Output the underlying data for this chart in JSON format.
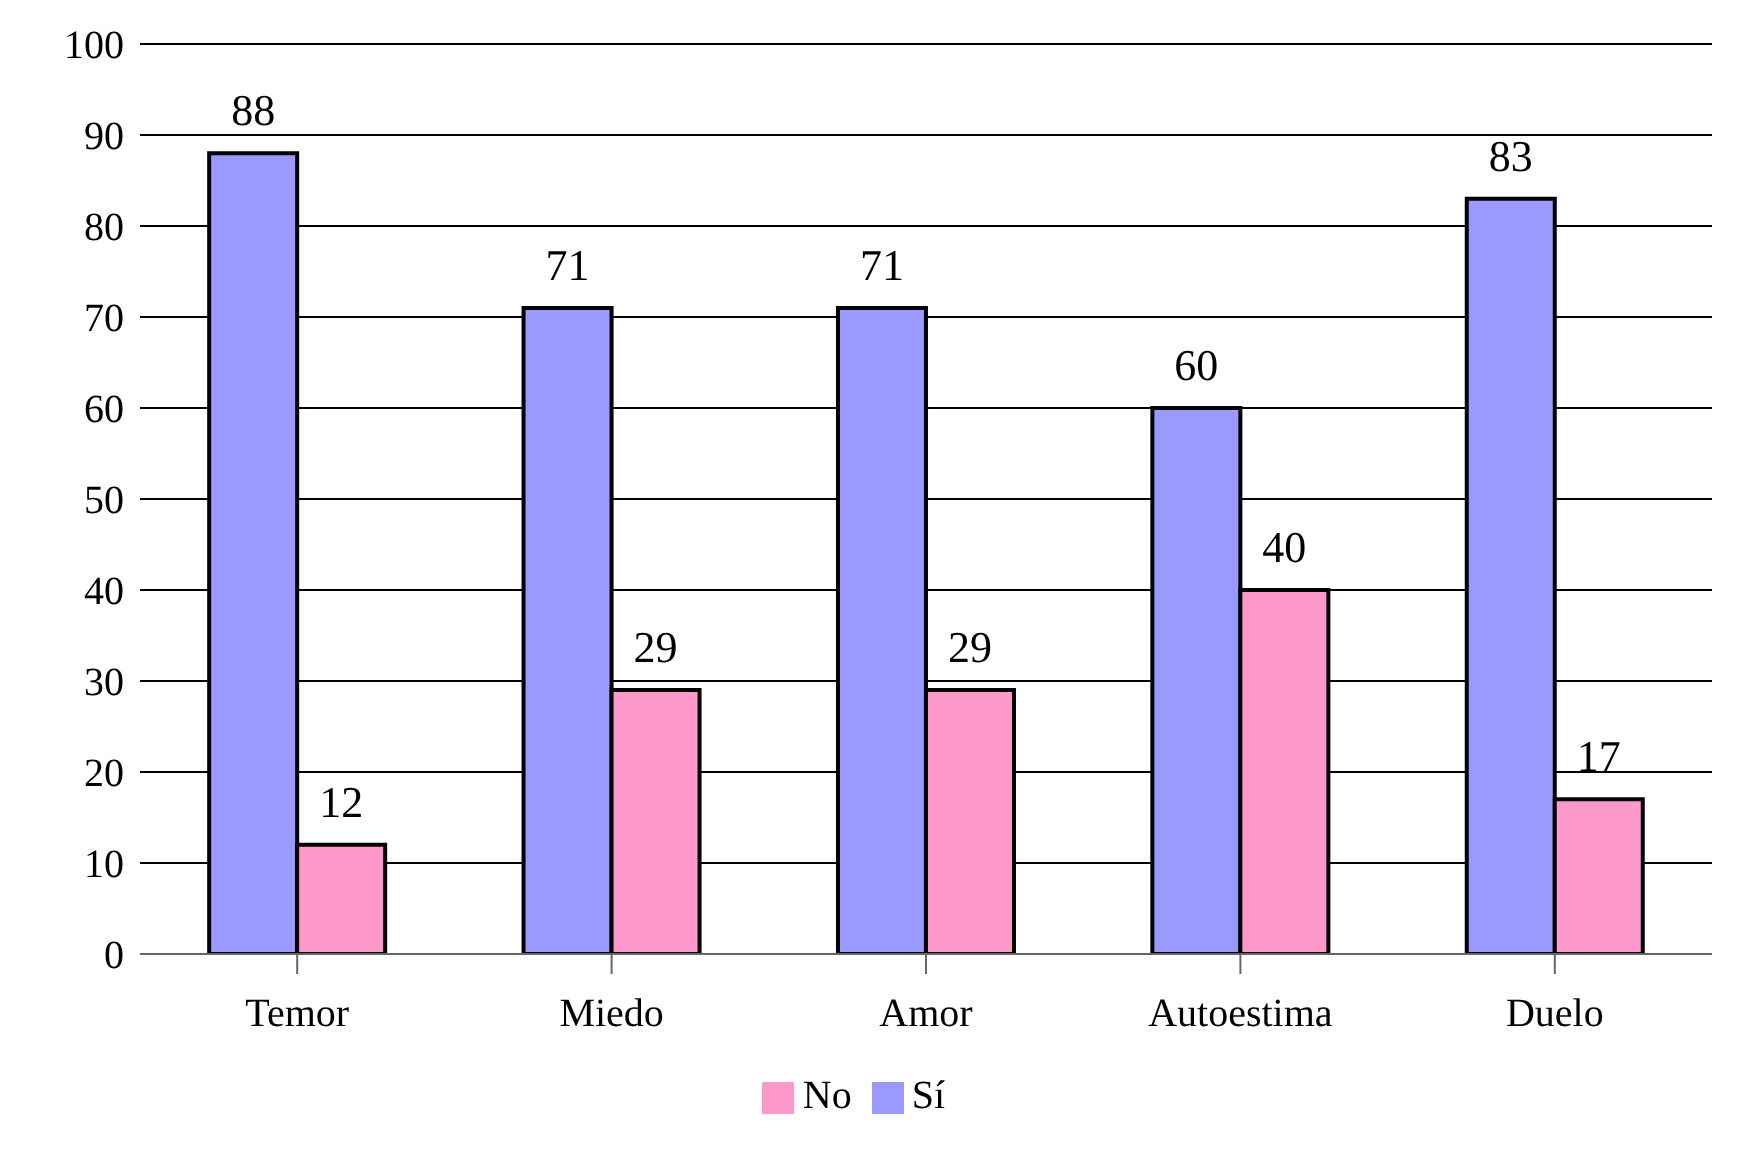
{
  "chart_data": {
    "type": "bar",
    "categories": [
      "Temor",
      "Miedo",
      "Amor",
      "Autoestima",
      "Duelo"
    ],
    "series": [
      {
        "name": "Sí",
        "color": "#9999ff",
        "values": [
          88,
          71,
          71,
          60,
          83
        ]
      },
      {
        "name": "No",
        "color": "#ff99cc",
        "values": [
          12,
          29,
          29,
          40,
          17
        ]
      }
    ],
    "ylim": [
      0,
      100
    ],
    "yticks": [
      0,
      10,
      20,
      30,
      40,
      50,
      60,
      70,
      80,
      90,
      100
    ],
    "grid": "y",
    "legend": "bottom",
    "data_labels": true
  }
}
